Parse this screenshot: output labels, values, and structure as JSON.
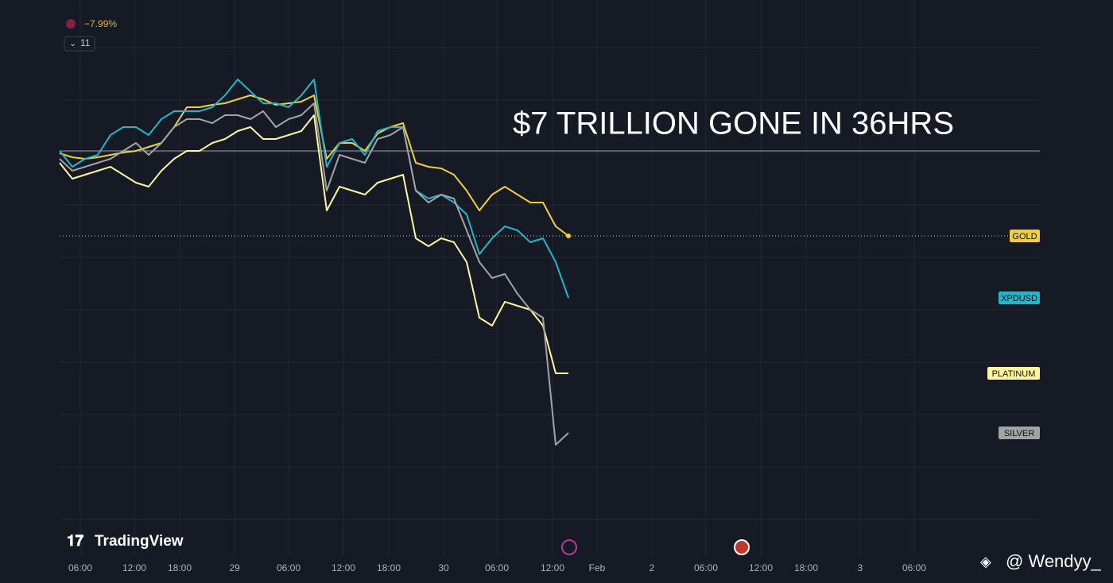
{
  "chart_data": {
    "type": "line",
    "title": "$7 TRILLION GONE IN 36HRS",
    "change_label": "−7.99%",
    "indicator_count": "11",
    "brand": "TradingView",
    "watermark": "@ Wendyy_",
    "xtick_labels": [
      "06:00",
      "12:00",
      "18:00",
      "29",
      "06:00",
      "12:00",
      "18:00",
      "30",
      "06:00",
      "12:00",
      "Feb",
      "2",
      "06:00",
      "12:00",
      "18:00",
      "3",
      "06:00"
    ],
    "ylim": [
      0,
      600
    ],
    "series": [
      {
        "name": "GOLD",
        "color": "#f0cf3c",
        "values": [
          467,
          462,
          460,
          462,
          465,
          468,
          470,
          475,
          480,
          500,
          525,
          525,
          528,
          530,
          535,
          540,
          535,
          528,
          530,
          532,
          540,
          460,
          480,
          480,
          470,
          492,
          500,
          505,
          455,
          450,
          448,
          440,
          420,
          395,
          415,
          425,
          415,
          405,
          405,
          375,
          363
        ]
      },
      {
        "name": "XPDUSD",
        "color": "#22b5cc",
        "values": [
          470,
          450,
          460,
          465,
          490,
          500,
          500,
          490,
          510,
          520,
          520,
          520,
          525,
          540,
          560,
          545,
          530,
          530,
          525,
          540,
          560,
          450,
          480,
          485,
          465,
          495,
          500,
          500,
          420,
          410,
          415,
          405,
          390,
          340,
          360,
          375,
          370,
          355,
          360,
          330,
          285
        ]
      },
      {
        "name": "PLATINUM",
        "color": "#fff59d",
        "values": [
          455,
          435,
          440,
          445,
          450,
          440,
          430,
          425,
          445,
          460,
          470,
          470,
          480,
          485,
          495,
          500,
          485,
          485,
          490,
          495,
          515,
          395,
          425,
          420,
          415,
          430,
          435,
          440,
          360,
          350,
          360,
          355,
          330,
          260,
          250,
          280,
          275,
          270,
          250,
          190,
          190
        ]
      },
      {
        "name": "SILVER",
        "color": "#a3a3a3",
        "values": [
          460,
          445,
          450,
          455,
          460,
          470,
          480,
          465,
          480,
          500,
          510,
          510,
          505,
          515,
          515,
          510,
          520,
          500,
          510,
          515,
          530,
          420,
          465,
          460,
          455,
          485,
          490,
          500,
          420,
          405,
          415,
          410,
          370,
          330,
          310,
          315,
          290,
          270,
          260,
          100,
          115
        ]
      }
    ]
  }
}
